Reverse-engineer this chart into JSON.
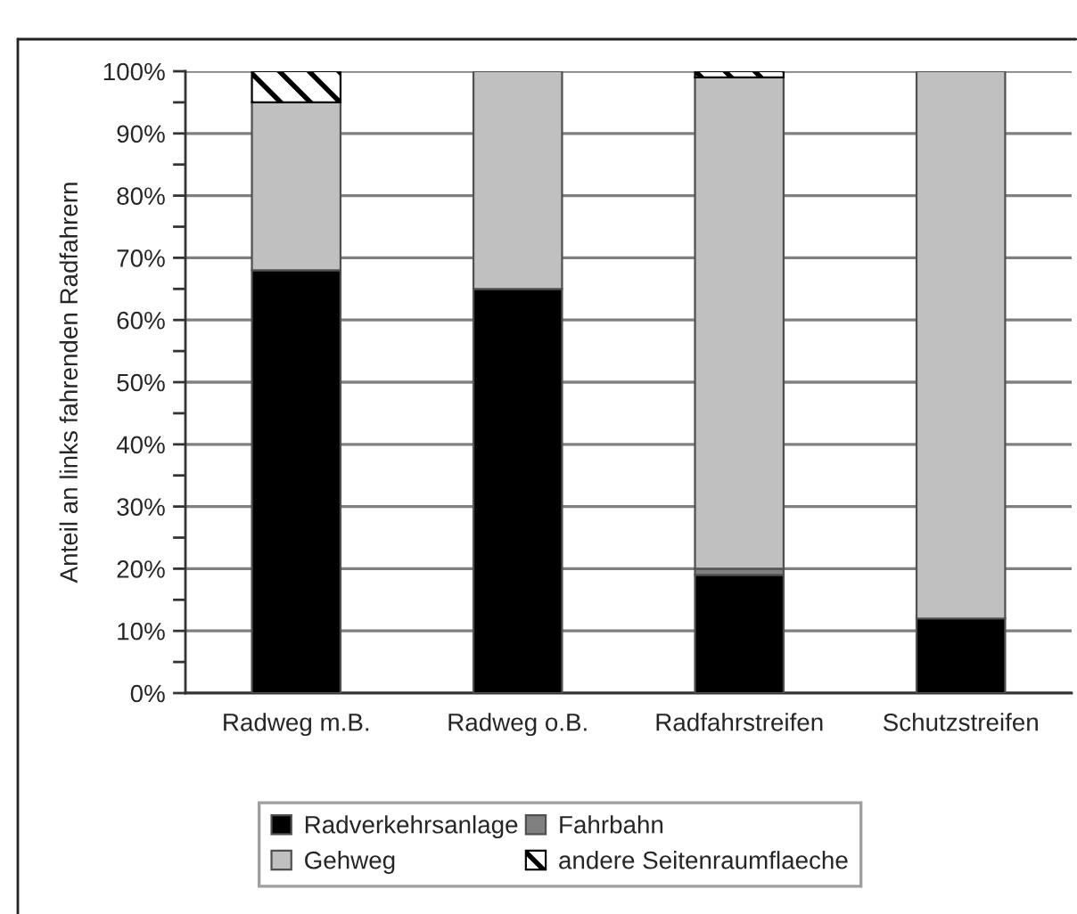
{
  "chart_data": {
    "type": "bar",
    "stacked": true,
    "ylabel": "Anteil an links fahrenden Radfahrern",
    "categories": [
      "Radweg m.B.",
      "Radweg o.B.",
      "Radfahrstreifen",
      "Schutzstreifen"
    ],
    "series": [
      {
        "name": "Radverkehrsanlage",
        "color": "#000000",
        "values": [
          68,
          65,
          19,
          12
        ]
      },
      {
        "name": "Fahrbahn",
        "color": "#808080",
        "values": [
          0,
          0,
          1,
          0
        ]
      },
      {
        "name": "Gehweg",
        "color": "#c0c0c0",
        "values": [
          27,
          35,
          79,
          88
        ]
      },
      {
        "name": "andere Seitenraumflaeche",
        "color": "#000000",
        "values": [
          5,
          0,
          1,
          0
        ]
      }
    ],
    "ylim": [
      0,
      100
    ],
    "yticks": [
      {
        "value": 0,
        "label": "0%"
      },
      {
        "value": 5,
        "label": null
      },
      {
        "value": 10,
        "label": "10%"
      },
      {
        "value": 15,
        "label": null
      },
      {
        "value": 20,
        "label": "20%"
      },
      {
        "value": 25,
        "label": null
      },
      {
        "value": 30,
        "label": "30%"
      },
      {
        "value": 35,
        "label": null
      },
      {
        "value": 40,
        "label": "40%"
      },
      {
        "value": 45,
        "label": null
      },
      {
        "value": 50,
        "label": "50%"
      },
      {
        "value": 55,
        "label": null
      },
      {
        "value": 60,
        "label": "60%"
      },
      {
        "value": 65,
        "label": null
      },
      {
        "value": 70,
        "label": "70%"
      },
      {
        "value": 75,
        "label": null
      },
      {
        "value": 80,
        "label": "80%"
      },
      {
        "value": 85,
        "label": null
      },
      {
        "value": 90,
        "label": "90%"
      },
      {
        "value": 95,
        "label": null
      },
      {
        "value": 100,
        "label": "100%"
      }
    ],
    "grid": "y",
    "legend": "bottom"
  }
}
